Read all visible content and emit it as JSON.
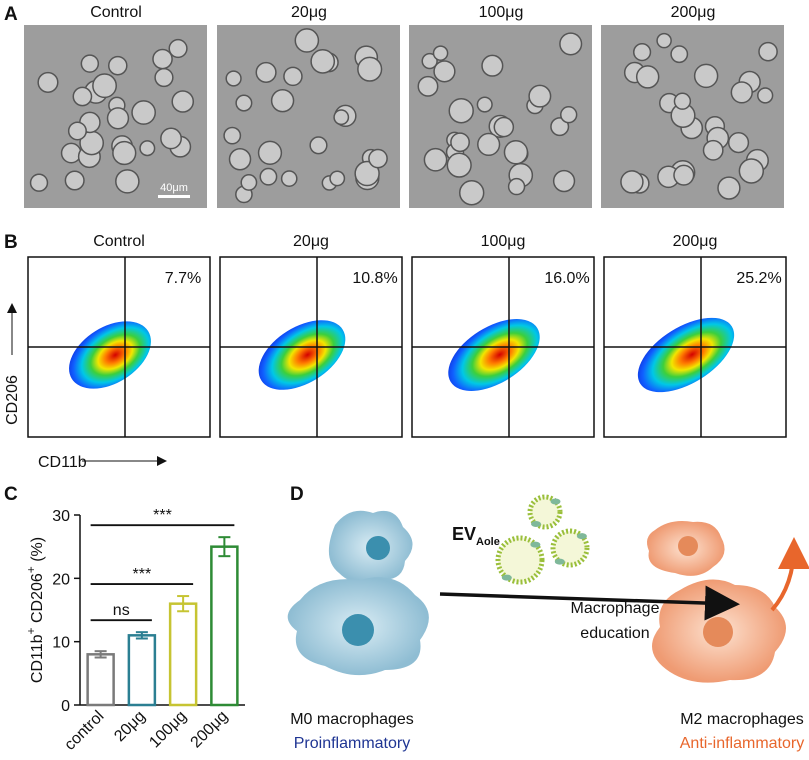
{
  "panel_a": {
    "label": "A",
    "titles": [
      "Control",
      "20μg",
      "100μg",
      "200μg"
    ],
    "scale_bar": "40μm"
  },
  "panel_b": {
    "label": "B",
    "titles": [
      "Control",
      "20μg",
      "100μg",
      "200μg"
    ],
    "percents": [
      "7.7%",
      "10.8%",
      "16.0%",
      "25.2%"
    ],
    "y_label": "CD206",
    "x_label": "CD11b"
  },
  "panel_c": {
    "label": "C"
  },
  "chart_data": {
    "type": "bar",
    "y_label": [
      "CD11b",
      "+",
      " CD206",
      "+",
      " (%)"
    ],
    "categories": [
      "control",
      "20μg",
      "100μg",
      "200μg"
    ],
    "values": [
      8,
      11,
      16,
      25
    ],
    "errors": [
      0.5,
      0.5,
      1.2,
      1.5
    ],
    "colors": [
      "#7a7a7a",
      "#2b7f92",
      "#c6c432",
      "#2e8b35"
    ],
    "ylim": [
      0,
      30
    ],
    "yticks": [
      0,
      10,
      20,
      30
    ],
    "significance": [
      "ns",
      "***",
      "***"
    ]
  },
  "panel_d": {
    "label": "D",
    "ev": "EV",
    "ev_sub": "Aole",
    "arrow_text": [
      "Macrophage",
      "education"
    ],
    "m0": "M0 macrophages",
    "m0_desc": "Proinflammatory",
    "m2": "M2 macrophages",
    "m2_desc": "Anti-inflammatory"
  }
}
